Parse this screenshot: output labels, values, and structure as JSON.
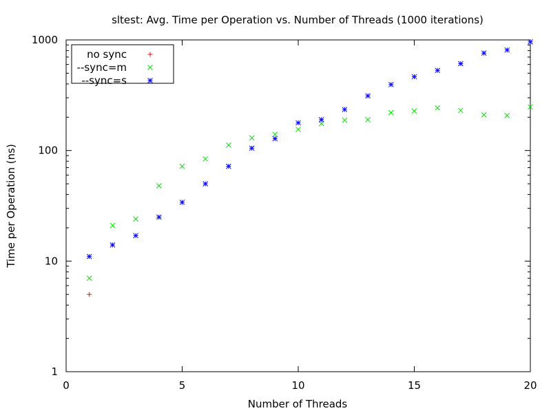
{
  "chart_data": {
    "type": "scatter",
    "title": "sltest: Avg. Time per Operation vs. Number of Threads (1000 iterations)",
    "xlabel": "Number of Threads",
    "ylabel": "Time per Operation (ns)",
    "xlim": [
      0,
      20
    ],
    "ylim": [
      1,
      1000
    ],
    "yscale": "log",
    "x_ticks": [
      0,
      5,
      10,
      15,
      20
    ],
    "x_tick_labels": [
      "0",
      "5",
      "10",
      "15",
      "20"
    ],
    "y_ticks": [
      1,
      10,
      100,
      1000
    ],
    "y_tick_labels": [
      "1",
      "10",
      "100",
      "1000"
    ],
    "grid": false,
    "legend_position": "top-left",
    "series": [
      {
        "name": "no sync",
        "color": "#ff0000",
        "marker": "plus",
        "x": [
          1
        ],
        "y": [
          5
        ]
      },
      {
        "name": "--sync=m",
        "color": "#00e000",
        "marker": "cross",
        "x": [
          1,
          2,
          3,
          4,
          5,
          6,
          7,
          8,
          9,
          10,
          11,
          12,
          13,
          14,
          15,
          16,
          17,
          18,
          19,
          20
        ],
        "y": [
          7,
          21,
          24,
          48,
          72,
          84,
          112,
          130,
          140,
          155,
          175,
          188,
          190,
          220,
          228,
          243,
          230,
          210,
          207,
          248
        ]
      },
      {
        "name": "--sync=s",
        "color": "#0000ff",
        "marker": "star",
        "x": [
          1,
          2,
          3,
          4,
          5,
          6,
          7,
          8,
          9,
          10,
          11,
          12,
          13,
          14,
          15,
          16,
          17,
          18,
          19,
          20
        ],
        "y": [
          11,
          14,
          17,
          25,
          34,
          50,
          72,
          105,
          128,
          178,
          190,
          235,
          312,
          395,
          465,
          530,
          610,
          760,
          810,
          960
        ]
      }
    ]
  }
}
